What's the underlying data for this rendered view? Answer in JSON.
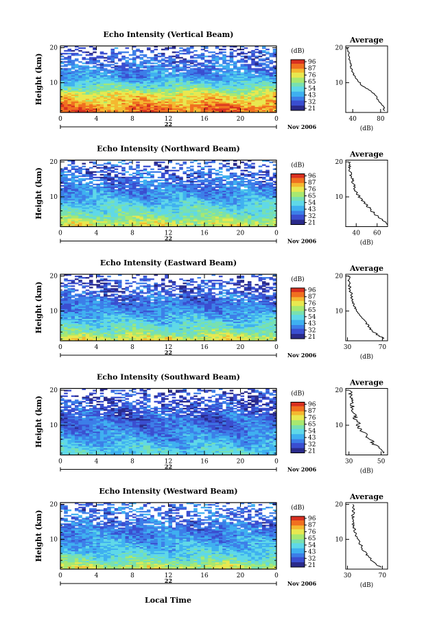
{
  "figure": {
    "xlabel": "Local Time",
    "date_label": "Nov 2006",
    "day_label": "22",
    "colorbar_unit": "(dB)",
    "colorbar_ticks": [
      "96",
      "87",
      "76",
      "65",
      "54",
      "43",
      "32",
      "21"
    ],
    "avg_title": "Average",
    "avg_xlabel": "(dB)",
    "ylabel": "Height (km)",
    "palette": [
      "#2a2a8a",
      "#3a4ed0",
      "#3c7ee8",
      "#3fb0f0",
      "#5fd8e8",
      "#78e0b0",
      "#a8e870",
      "#e8e850",
      "#f4b830",
      "#f07020",
      "#d83020"
    ]
  },
  "chart_data": [
    {
      "type": "heatmap",
      "title": "Echo Intensity (Vertical Beam)",
      "xlabel": "Local Time",
      "ylabel": "Height (km)",
      "x_ticks": [
        "0",
        "4",
        "8",
        "12",
        "16",
        "20",
        "0"
      ],
      "y_ticks": [
        "20",
        "10"
      ],
      "xlim": [
        0,
        24
      ],
      "ylim": [
        1.5,
        20.5
      ],
      "zlim": [
        21,
        96
      ],
      "z_unit": "dB",
      "profile": [
        {
          "h": 2,
          "db": 85
        },
        {
          "h": 3,
          "db": 84
        },
        {
          "h": 4,
          "db": 80
        },
        {
          "h": 5,
          "db": 77
        },
        {
          "h": 6,
          "db": 74
        },
        {
          "h": 7,
          "db": 70
        },
        {
          "h": 8,
          "db": 62
        },
        {
          "h": 9,
          "db": 55
        },
        {
          "h": 10,
          "db": 50
        },
        {
          "h": 11,
          "db": 45
        },
        {
          "h": 12,
          "db": 42
        },
        {
          "h": 14,
          "db": 38
        },
        {
          "h": 16,
          "db": 36
        },
        {
          "h": 18,
          "db": 34
        },
        {
          "h": 20,
          "db": 33
        }
      ],
      "avg_x_ticks": [
        "40",
        "80"
      ],
      "avg_xlim": [
        30,
        90
      ],
      "avg_ylabel": "(dB)"
    },
    {
      "type": "heatmap",
      "title": "Echo Intensity (Northward Beam)",
      "xlabel": "Local Time",
      "ylabel": "Height (km)",
      "x_ticks": [
        "0",
        "4",
        "8",
        "12",
        "16",
        "20",
        "0"
      ],
      "y_ticks": [
        "20",
        "10"
      ],
      "xlim": [
        0,
        24
      ],
      "ylim": [
        1.5,
        20.5
      ],
      "zlim": [
        21,
        96
      ],
      "z_unit": "dB",
      "profile": [
        {
          "h": 2,
          "db": 70
        },
        {
          "h": 3,
          "db": 66
        },
        {
          "h": 4,
          "db": 62
        },
        {
          "h": 5,
          "db": 58
        },
        {
          "h": 6,
          "db": 55
        },
        {
          "h": 7,
          "db": 52
        },
        {
          "h": 8,
          "db": 49
        },
        {
          "h": 9,
          "db": 46
        },
        {
          "h": 10,
          "db": 43
        },
        {
          "h": 11,
          "db": 41
        },
        {
          "h": 12,
          "db": 39
        },
        {
          "h": 14,
          "db": 37
        },
        {
          "h": 16,
          "db": 35
        },
        {
          "h": 18,
          "db": 34
        },
        {
          "h": 20,
          "db": 34
        }
      ],
      "avg_x_ticks": [
        "40",
        "60"
      ],
      "avg_xlim": [
        30,
        70
      ],
      "avg_ylabel": "(dB)"
    },
    {
      "type": "heatmap",
      "title": "Echo Intensity (Eastward Beam)",
      "xlabel": "Local Time",
      "ylabel": "Height (km)",
      "x_ticks": [
        "0",
        "4",
        "8",
        "12",
        "16",
        "20",
        "0"
      ],
      "y_ticks": [
        "20",
        "10"
      ],
      "xlim": [
        0,
        24
      ],
      "ylim": [
        1.5,
        20.5
      ],
      "zlim": [
        21,
        96
      ],
      "z_unit": "dB",
      "profile": [
        {
          "h": 2,
          "db": 72
        },
        {
          "h": 3,
          "db": 66
        },
        {
          "h": 4,
          "db": 60
        },
        {
          "h": 5,
          "db": 56
        },
        {
          "h": 6,
          "db": 53
        },
        {
          "h": 7,
          "db": 50
        },
        {
          "h": 8,
          "db": 47
        },
        {
          "h": 9,
          "db": 44
        },
        {
          "h": 10,
          "db": 41
        },
        {
          "h": 11,
          "db": 39
        },
        {
          "h": 12,
          "db": 37
        },
        {
          "h": 14,
          "db": 35
        },
        {
          "h": 16,
          "db": 33
        },
        {
          "h": 18,
          "db": 32
        },
        {
          "h": 20,
          "db": 32
        }
      ],
      "avg_x_ticks": [
        "30",
        "70"
      ],
      "avg_xlim": [
        28,
        76
      ],
      "avg_ylabel": "(dB)"
    },
    {
      "type": "heatmap",
      "title": "Echo Intensity (Southward Beam)",
      "xlabel": "Local Time",
      "ylabel": "Height (km)",
      "x_ticks": [
        "0",
        "4",
        "8",
        "12",
        "16",
        "20",
        "0"
      ],
      "y_ticks": [
        "20",
        "10"
      ],
      "xlim": [
        0,
        24
      ],
      "ylim": [
        1.5,
        20.5
      ],
      "zlim": [
        21,
        96
      ],
      "z_unit": "dB",
      "profile": [
        {
          "h": 2,
          "db": 52
        },
        {
          "h": 3,
          "db": 50
        },
        {
          "h": 4,
          "db": 47
        },
        {
          "h": 5,
          "db": 45
        },
        {
          "h": 6,
          "db": 43
        },
        {
          "h": 7,
          "db": 41
        },
        {
          "h": 8,
          "db": 39
        },
        {
          "h": 9,
          "db": 37
        },
        {
          "h": 10,
          "db": 36
        },
        {
          "h": 11,
          "db": 35
        },
        {
          "h": 12,
          "db": 34
        },
        {
          "h": 14,
          "db": 33
        },
        {
          "h": 16,
          "db": 32
        },
        {
          "h": 18,
          "db": 31
        },
        {
          "h": 20,
          "db": 31
        }
      ],
      "avg_x_ticks": [
        "30",
        "50"
      ],
      "avg_xlim": [
        28,
        54
      ],
      "avg_ylabel": "(dB)"
    },
    {
      "type": "heatmap",
      "title": "Echo Intensity (Westward Beam)",
      "xlabel": "Local Time",
      "ylabel": "Height (km)",
      "x_ticks": [
        "0",
        "4",
        "8",
        "12",
        "16",
        "20",
        "0"
      ],
      "y_ticks": [
        "20",
        "10"
      ],
      "xlim": [
        0,
        24
      ],
      "ylim": [
        1.5,
        20.5
      ],
      "zlim": [
        21,
        96
      ],
      "z_unit": "dB",
      "profile": [
        {
          "h": 2,
          "db": 68
        },
        {
          "h": 3,
          "db": 63
        },
        {
          "h": 4,
          "db": 58
        },
        {
          "h": 5,
          "db": 54
        },
        {
          "h": 6,
          "db": 51
        },
        {
          "h": 7,
          "db": 48
        },
        {
          "h": 8,
          "db": 46
        },
        {
          "h": 9,
          "db": 44
        },
        {
          "h": 10,
          "db": 42
        },
        {
          "h": 11,
          "db": 40
        },
        {
          "h": 12,
          "db": 39
        },
        {
          "h": 14,
          "db": 37
        },
        {
          "h": 16,
          "db": 36
        },
        {
          "h": 18,
          "db": 37
        },
        {
          "h": 20,
          "db": 36
        }
      ],
      "avg_x_ticks": [
        "30",
        "70"
      ],
      "avg_xlim": [
        28,
        76
      ],
      "avg_ylabel": "(dB)"
    }
  ]
}
